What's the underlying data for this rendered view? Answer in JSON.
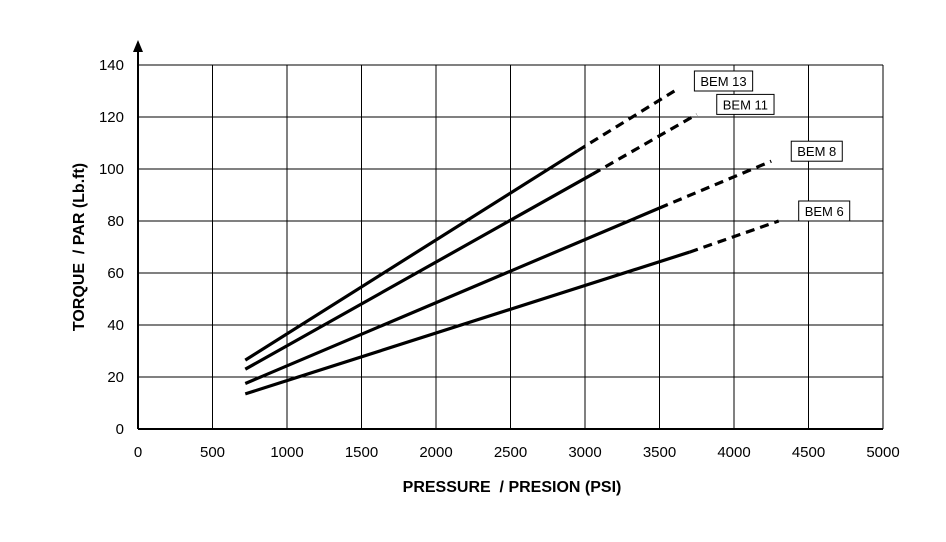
{
  "chart_data": {
    "type": "line",
    "title": "",
    "xlabel": "PRESSURE  / PRESION (PSI)",
    "ylabel": "TORQUE  / PAR (Lb.ft)",
    "xlim": [
      0,
      5000
    ],
    "ylim": [
      0,
      140
    ],
    "xticks": [
      0,
      500,
      1000,
      1500,
      2000,
      2500,
      3000,
      3500,
      4000,
      4500,
      5000
    ],
    "yticks": [
      0,
      20,
      40,
      60,
      80,
      100,
      120,
      140
    ],
    "grid": true,
    "legend": "inline-labels",
    "series": [
      {
        "name": "BEM 13",
        "solid": [
          [
            720,
            26.5
          ],
          [
            2950,
            107
          ]
        ],
        "dashed": [
          [
            2950,
            107
          ],
          [
            3600,
            130
          ]
        ]
      },
      {
        "name": "BEM 11",
        "solid": [
          [
            720,
            23
          ],
          [
            3050,
            98
          ]
        ],
        "dashed": [
          [
            3050,
            98
          ],
          [
            3750,
            121
          ]
        ]
      },
      {
        "name": "BEM 8",
        "solid": [
          [
            720,
            17.5
          ],
          [
            3500,
            85
          ]
        ],
        "dashed": [
          [
            3500,
            85
          ],
          [
            4250,
            103
          ]
        ]
      },
      {
        "name": "BEM 6",
        "solid": [
          [
            720,
            13.5
          ],
          [
            3700,
            68
          ]
        ],
        "dashed": [
          [
            3700,
            68
          ],
          [
            4300,
            80
          ]
        ]
      }
    ]
  }
}
